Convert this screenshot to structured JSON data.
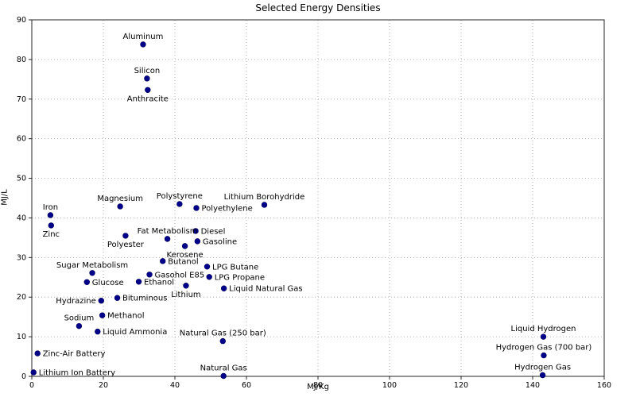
{
  "chart_data": {
    "type": "scatter",
    "title": "Selected Energy Densities",
    "xlabel": "MJ/Kg",
    "ylabel": "MJ/L",
    "xlim": [
      0,
      160
    ],
    "ylim": [
      0,
      90
    ],
    "xticks": [
      0,
      20,
      40,
      60,
      80,
      100,
      120,
      140,
      160
    ],
    "yticks": [
      0,
      10,
      20,
      30,
      40,
      50,
      60,
      70,
      80,
      90
    ],
    "grid": true,
    "grid_style": "dotted",
    "grid_color": "#b5b5b5",
    "marker_color": "#00008b",
    "marker_edge_color": "#00005a",
    "axis_color": "#262626",
    "text_color": "#000000",
    "legend": "none",
    "points": [
      {
        "label": "Aluminum",
        "x": 31.1,
        "y": 83.8,
        "label_pos": "above"
      },
      {
        "label": "Silicon",
        "x": 32.2,
        "y": 75.2,
        "label_pos": "above"
      },
      {
        "label": "Anthracite",
        "x": 32.4,
        "y": 72.3,
        "label_pos": "below"
      },
      {
        "label": "Iron",
        "x": 5.2,
        "y": 40.7,
        "label_pos": "above"
      },
      {
        "label": "Zinc",
        "x": 5.4,
        "y": 38.1,
        "label_pos": "below"
      },
      {
        "label": "Magnesium",
        "x": 24.7,
        "y": 42.9,
        "label_pos": "above"
      },
      {
        "label": "Polystyrene",
        "x": 41.3,
        "y": 43.5,
        "label_pos": "above"
      },
      {
        "label": "Polyethylene",
        "x": 46.0,
        "y": 42.5,
        "label_pos": "right"
      },
      {
        "label": "Lithium Borohydride",
        "x": 65.0,
        "y": 43.3,
        "label_pos": "above"
      },
      {
        "label": "Diesel",
        "x": 45.8,
        "y": 36.7,
        "label_pos": "right"
      },
      {
        "label": "Fat Metabolism",
        "x": 37.9,
        "y": 34.7,
        "label_pos": "above"
      },
      {
        "label": "Gasoline",
        "x": 46.3,
        "y": 34.1,
        "label_pos": "right"
      },
      {
        "label": "Polyester",
        "x": 26.2,
        "y": 35.5,
        "label_pos": "below"
      },
      {
        "label": "Kerosene",
        "x": 42.8,
        "y": 32.9,
        "label_pos": "below"
      },
      {
        "label": "Butanol",
        "x": 36.6,
        "y": 29.1,
        "label_pos": "right"
      },
      {
        "label": "Sugar Metabolism",
        "x": 16.9,
        "y": 26.1,
        "label_pos": "above"
      },
      {
        "label": "Glucose",
        "x": 15.4,
        "y": 23.8,
        "label_pos": "right"
      },
      {
        "label": "Gasohol E85",
        "x": 32.9,
        "y": 25.7,
        "label_pos": "right"
      },
      {
        "label": "Ethanol",
        "x": 29.9,
        "y": 23.9,
        "label_pos": "right"
      },
      {
        "label": "LPG Butane",
        "x": 49.0,
        "y": 27.7,
        "label_pos": "right"
      },
      {
        "label": "LPG Propane",
        "x": 49.6,
        "y": 25.1,
        "label_pos": "right"
      },
      {
        "label": "Lithium",
        "x": 43.1,
        "y": 22.9,
        "label_pos": "below"
      },
      {
        "label": "Liquid Natural Gas",
        "x": 53.7,
        "y": 22.2,
        "label_pos": "right"
      },
      {
        "label": "Hydrazine",
        "x": 19.4,
        "y": 19.1,
        "label_pos": "left"
      },
      {
        "label": "Bituminous",
        "x": 23.9,
        "y": 19.8,
        "label_pos": "right"
      },
      {
        "label": "Methanol",
        "x": 19.7,
        "y": 15.4,
        "label_pos": "right"
      },
      {
        "label": "Sodium",
        "x": 13.2,
        "y": 12.7,
        "label_pos": "above"
      },
      {
        "label": "Liquid Ammonia",
        "x": 18.4,
        "y": 11.3,
        "label_pos": "right"
      },
      {
        "label": "Zinc-Air Battery",
        "x": 1.6,
        "y": 5.8,
        "label_pos": "right"
      },
      {
        "label": "Lithium Ion Battery",
        "x": 0.5,
        "y": 1.0,
        "label_pos": "right"
      },
      {
        "label": "Natural Gas (250 bar)",
        "x": 53.4,
        "y": 8.9,
        "label_pos": "above"
      },
      {
        "label": "Natural Gas",
        "x": 53.6,
        "y": 0.1,
        "label_pos": "above"
      },
      {
        "label": "Liquid Hydrogen",
        "x": 143.0,
        "y": 10.0,
        "label_pos": "above"
      },
      {
        "label": "Hydrogen Gas (700 bar)",
        "x": 143.1,
        "y": 5.3,
        "label_pos": "above"
      },
      {
        "label": "Hydrogen Gas",
        "x": 142.8,
        "y": 0.3,
        "label_pos": "above"
      }
    ]
  }
}
